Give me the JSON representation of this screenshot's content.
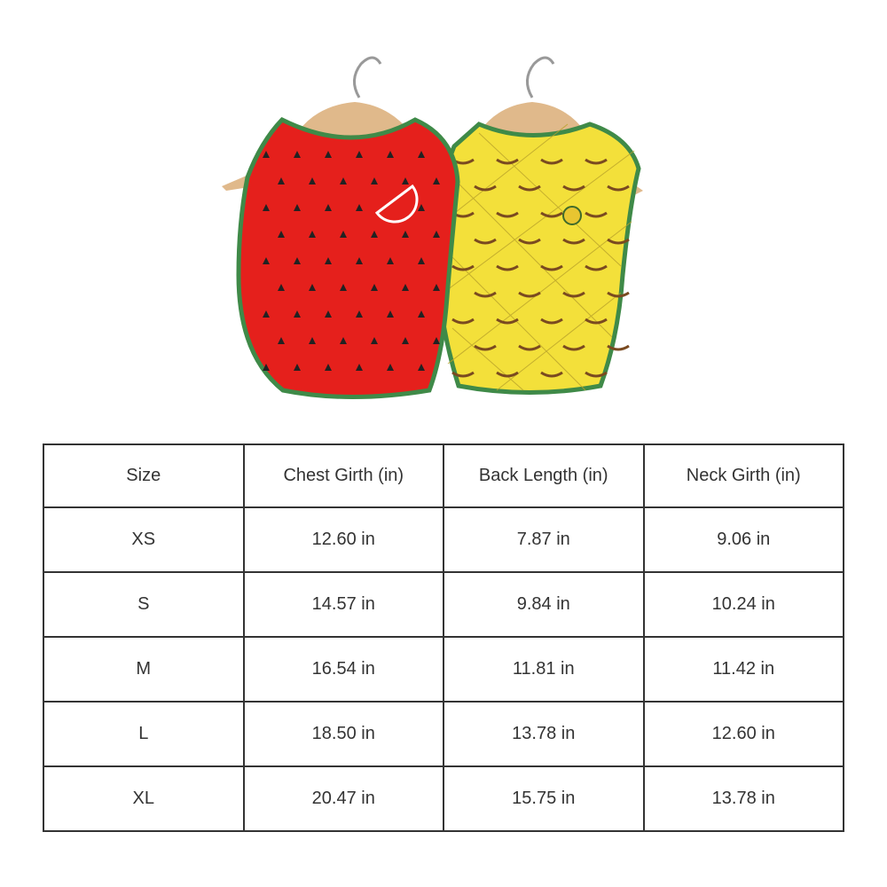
{
  "product_image": {
    "items": [
      "watermelon-shirt",
      "pineapple-shirt"
    ],
    "colors": {
      "watermelon": "#e5201c",
      "pineapple": "#f3e03a",
      "trim": "#3f8a48",
      "hanger": "#e0b98b"
    }
  },
  "size_table": {
    "headers": [
      "Size",
      "Chest Girth (in)",
      "Back Length (in)",
      "Neck Girth (in)"
    ],
    "rows": [
      [
        "XS",
        "12.60 in",
        "7.87 in",
        "9.06 in"
      ],
      [
        "S",
        "14.57 in",
        "9.84 in",
        "10.24 in"
      ],
      [
        "M",
        "16.54 in",
        "11.81 in",
        "11.42 in"
      ],
      [
        "L",
        "18.50 in",
        "13.78 in",
        "12.60 in"
      ],
      [
        "XL",
        "20.47 in",
        "15.75 in",
        "13.78 in"
      ]
    ]
  }
}
